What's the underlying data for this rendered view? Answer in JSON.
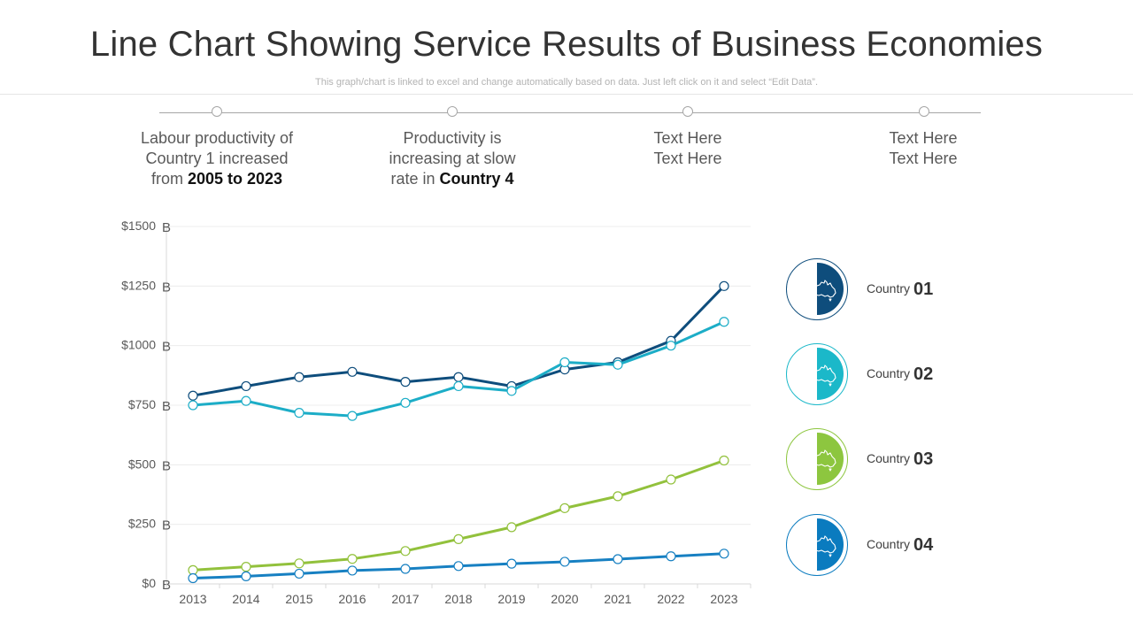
{
  "header": {
    "title": "Line Chart Showing Service Results of Business Economies",
    "subtitle": "This graph/chart is linked to excel and change automatically based on data. Just left click on it and select “Edit Data”."
  },
  "timeline": [
    {
      "lines": [
        {
          "text": "Labour productivity of"
        },
        {
          "text": "Country 1 increased"
        },
        {
          "text": "from ",
          "bold": "2005 to 2023"
        }
      ]
    },
    {
      "lines": [
        {
          "text": "Productivity is"
        },
        {
          "text": "increasing at slow"
        },
        {
          "text": "rate in ",
          "bold": "Country 4"
        }
      ]
    },
    {
      "lines": [
        {
          "text": "Text Here"
        },
        {
          "text": "Text Here"
        }
      ]
    },
    {
      "lines": [
        {
          "text": "Text Here"
        },
        {
          "text": "Text Here"
        }
      ]
    }
  ],
  "chart_data": {
    "type": "line",
    "title": "Line Chart Showing Service Results of Business Economies",
    "xlabel": "",
    "ylabel": "",
    "ylim": [
      0,
      1500
    ],
    "yticks": [
      0,
      250,
      500,
      750,
      1000,
      1250,
      1500
    ],
    "ytick_labels": [
      "$0",
      "$250",
      "$500",
      "$750",
      "$1000",
      "$1250",
      "$1500"
    ],
    "ytick_unit": "B",
    "grid": true,
    "categories": [
      "2013",
      "2014",
      "2015",
      "2016",
      "2017",
      "2018",
      "2019",
      "2020",
      "2021",
      "2022",
      "2023"
    ],
    "series": [
      {
        "name": "Country 01",
        "color": "#0e4d7c",
        "values": [
          790,
          830,
          868,
          890,
          848,
          868,
          830,
          900,
          930,
          1020,
          1250
        ]
      },
      {
        "name": "Country 02",
        "color": "#1cadc7",
        "values": [
          750,
          768,
          718,
          705,
          760,
          830,
          810,
          930,
          920,
          1000,
          1100
        ]
      },
      {
        "name": "Country 03",
        "color": "#92c13c",
        "values": [
          58,
          72,
          86,
          105,
          138,
          188,
          238,
          318,
          368,
          438,
          518
        ]
      },
      {
        "name": "Country 04",
        "color": "#1780c2",
        "values": [
          24,
          32,
          43,
          56,
          63,
          75,
          85,
          93,
          104,
          116,
          127
        ]
      }
    ]
  },
  "legend": [
    {
      "label": "Country",
      "number": "01",
      "color": "#0e4d7c",
      "icon": "australia-map-icon"
    },
    {
      "label": "Country",
      "number": "02",
      "color": "#1bb8c9",
      "icon": "australia-map-icon"
    },
    {
      "label": "Country",
      "number": "03",
      "color": "#8dc63f",
      "icon": "australia-map-icon"
    },
    {
      "label": "Country",
      "number": "04",
      "color": "#0a7bbf",
      "icon": "australia-map-icon"
    }
  ]
}
